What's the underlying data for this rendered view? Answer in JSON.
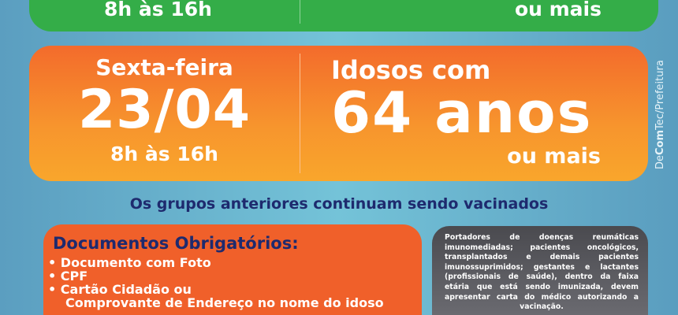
{
  "top_card": {
    "hours": "8h às 16h",
    "suffix": "ou mais"
  },
  "main_card": {
    "weekday": "Sexta-feira",
    "date": "23/04",
    "hours": "8h às 16h",
    "group_prefix": "Idosos com",
    "group_age": "64 anos",
    "group_suffix": "ou mais"
  },
  "credit": {
    "bold_part": "Com",
    "pre": "De",
    "post": "Tec/Prefeitura"
  },
  "notice": "Os grupos anteriores continuam sendo vacinados",
  "documents": {
    "title": "Documentos Obrigatórios:",
    "items": [
      "• Documento com Foto",
      "• CPF",
      "• Cartão Cidadão ou",
      "Comprovante de Endereço no nome do idoso"
    ]
  },
  "medical_note": "Portadores de doenças reumáticas imunomediadas; pacientes oncológicos, transplantados e demais pacientes imunossuprimidos; gestantes e lactantes (profissionais de saúde), dentro da faixa etária que está sendo imunizada, devem apresentar carta do médico autorizando a vacinação.",
  "colors": {
    "green": "#34ad48",
    "orange": "#f36b2c",
    "navy": "#1e2a6e",
    "gray": "#4a4a4f"
  }
}
